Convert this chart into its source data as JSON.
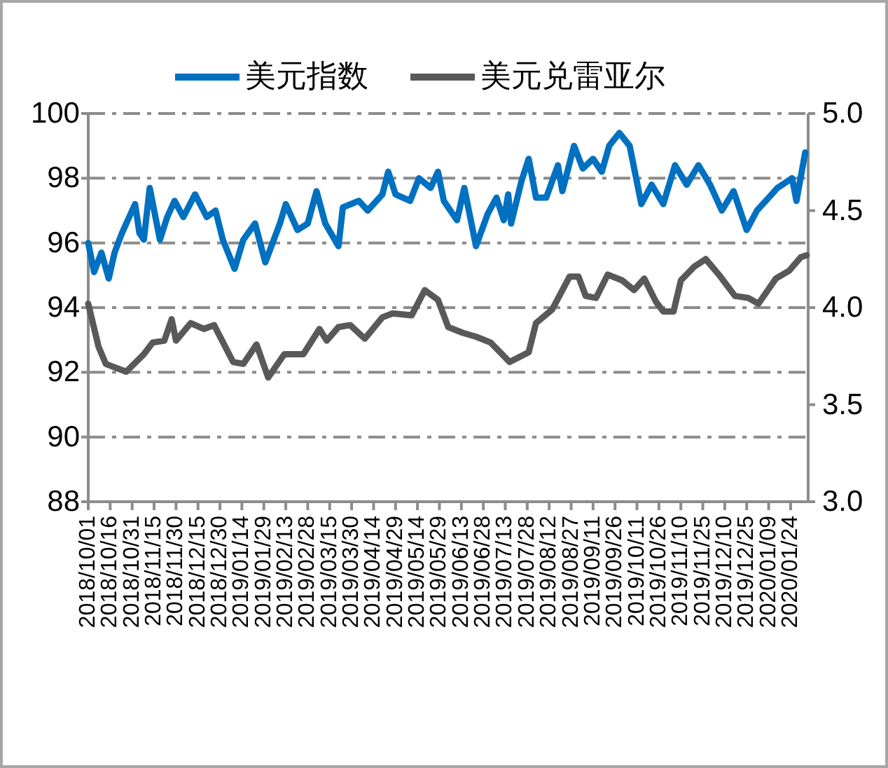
{
  "chart_data": {
    "type": "line",
    "legend": "top",
    "grid": "y",
    "line_style": "solid",
    "xlim": [
      "2018-10-01",
      "2020-02-05"
    ],
    "ylim": [
      88,
      100
    ],
    "yticks": [
      88,
      90,
      92,
      94,
      96,
      98,
      100
    ],
    "y2lim": [
      3,
      5
    ],
    "y2ticks": [
      {
        "value": 3,
        "label": "3.0"
      },
      {
        "value": 3.5,
        "label": "3.5"
      },
      {
        "value": 4,
        "label": "4.0"
      },
      {
        "value": 4.5,
        "label": "4.5"
      },
      {
        "value": 5,
        "label": "5.0"
      }
    ],
    "xticks": [
      {
        "value": "2018-10-01",
        "label": "2018/10/01"
      },
      {
        "value": "2018-10-16",
        "label": "2018/10/16"
      },
      {
        "value": "2018-10-31",
        "label": "2018/10/31"
      },
      {
        "value": "2018-11-15",
        "label": "2018/11/15"
      },
      {
        "value": "2018-11-30",
        "label": "2018/11/30"
      },
      {
        "value": "2018-12-15",
        "label": "2018/12/15"
      },
      {
        "value": "2018-12-30",
        "label": "2018/12/30"
      },
      {
        "value": "2019-01-14",
        "label": "2019/01/14"
      },
      {
        "value": "2019-01-29",
        "label": "2019/01/29"
      },
      {
        "value": "2019-02-13",
        "label": "2019/02/13"
      },
      {
        "value": "2019-02-28",
        "label": "2019/02/28"
      },
      {
        "value": "2019-03-15",
        "label": "2019/03/15"
      },
      {
        "value": "2019-03-30",
        "label": "2019/03/30"
      },
      {
        "value": "2019-04-14",
        "label": "2019/04/14"
      },
      {
        "value": "2019-04-29",
        "label": "2019/04/29"
      },
      {
        "value": "2019-05-14",
        "label": "2019/05/14"
      },
      {
        "value": "2019-05-29",
        "label": "2019/05/29"
      },
      {
        "value": "2019-06-13",
        "label": "2019/06/13"
      },
      {
        "value": "2019-06-28",
        "label": "2019/06/28"
      },
      {
        "value": "2019-07-13",
        "label": "2019/07/13"
      },
      {
        "value": "2019-07-28",
        "label": "2019/07/28"
      },
      {
        "value": "2019-08-12",
        "label": "2019/08/12"
      },
      {
        "value": "2019-08-27",
        "label": "2019/08/27"
      },
      {
        "value": "2019-09-11",
        "label": "2019/09/11"
      },
      {
        "value": "2019-09-26",
        "label": "2019/09/26"
      },
      {
        "value": "2019-10-11",
        "label": "2019/10/11"
      },
      {
        "value": "2019-10-26",
        "label": "2019/10/26"
      },
      {
        "value": "2019-11-10",
        "label": "2019/11/10"
      },
      {
        "value": "2019-11-25",
        "label": "2019/11/25"
      },
      {
        "value": "2019-12-10",
        "label": "2019/12/10"
      },
      {
        "value": "2019-12-25",
        "label": "2019/12/25"
      },
      {
        "value": "2020-01-09",
        "label": "2020/01/09"
      },
      {
        "value": "2020-01-24",
        "label": "2020/01/24"
      }
    ],
    "series": [
      {
        "name": "美元指数",
        "color": "#0070c0",
        "axis": "y",
        "x": [
          "2018-10-01",
          "2018-10-05",
          "2018-10-10",
          "2018-10-15",
          "2018-10-19",
          "2018-10-24",
          "2018-10-29",
          "2018-11-02",
          "2018-11-05",
          "2018-11-08",
          "2018-11-12",
          "2018-11-19",
          "2018-11-24",
          "2018-11-29",
          "2018-12-05",
          "2018-12-13",
          "2018-12-21",
          "2018-12-27",
          "2019-01-01",
          "2019-01-09",
          "2019-01-15",
          "2019-01-23",
          "2019-01-30",
          "2019-02-09",
          "2019-02-13",
          "2019-02-21",
          "2019-02-28",
          "2019-03-06",
          "2019-03-12",
          "2019-03-21",
          "2019-03-24",
          "2019-04-04",
          "2019-04-10",
          "2019-04-20",
          "2019-04-24",
          "2019-04-29",
          "2019-05-09",
          "2019-05-15",
          "2019-05-23",
          "2019-05-28",
          "2019-06-01",
          "2019-06-10",
          "2019-06-15",
          "2019-06-23",
          "2019-07-01",
          "2019-07-07",
          "2019-07-12",
          "2019-07-15",
          "2019-07-17",
          "2019-07-24",
          "2019-07-29",
          "2019-08-03",
          "2019-08-10",
          "2019-08-18",
          "2019-08-21",
          "2019-08-29",
          "2019-09-04",
          "2019-09-11",
          "2019-09-17",
          "2019-09-22",
          "2019-09-29",
          "2019-10-06",
          "2019-10-14",
          "2019-10-21",
          "2019-10-29",
          "2019-11-06",
          "2019-11-14",
          "2019-11-22",
          "2019-11-30",
          "2019-12-08",
          "2019-12-16",
          "2019-12-25",
          "2020-01-01",
          "2020-01-07",
          "2020-01-15",
          "2020-01-25",
          "2020-01-28",
          "2020-02-03"
        ],
        "values": [
          96.0,
          95.1,
          95.7,
          94.9,
          95.7,
          96.3,
          96.8,
          97.2,
          96.3,
          96.1,
          97.7,
          96.1,
          96.8,
          97.3,
          96.8,
          97.5,
          96.8,
          97.0,
          96.1,
          95.2,
          96.1,
          96.6,
          95.4,
          96.6,
          97.2,
          96.4,
          96.6,
          97.6,
          96.6,
          95.9,
          97.1,
          97.3,
          97.0,
          97.5,
          98.2,
          97.5,
          97.3,
          98.0,
          97.7,
          98.2,
          97.3,
          96.7,
          97.7,
          95.9,
          96.9,
          97.4,
          96.7,
          97.5,
          96.6,
          97.9,
          98.6,
          97.4,
          97.4,
          98.4,
          97.6,
          99.0,
          98.3,
          98.6,
          98.2,
          99.0,
          99.4,
          99.0,
          97.2,
          97.8,
          97.2,
          98.4,
          97.8,
          98.4,
          97.8,
          97.0,
          97.6,
          96.4,
          97.0,
          97.3,
          97.7,
          98.0,
          97.3,
          98.8
        ]
      },
      {
        "name": "美元兑雷亚尔",
        "color": "#595959",
        "axis": "y2",
        "x": [
          "2018-10-01",
          "2018-10-08",
          "2018-10-13",
          "2018-10-27",
          "2018-11-08",
          "2018-11-14",
          "2018-11-22",
          "2018-11-27",
          "2018-11-30",
          "2018-12-10",
          "2018-12-19",
          "2018-12-26",
          "2019-01-08",
          "2019-01-15",
          "2019-01-24",
          "2019-02-01",
          "2019-02-12",
          "2019-02-25",
          "2019-03-08",
          "2019-03-13",
          "2019-03-21",
          "2019-03-29",
          "2019-04-08",
          "2019-04-20",
          "2019-04-27",
          "2019-05-10",
          "2019-05-19",
          "2019-05-28",
          "2019-06-04",
          "2019-06-14",
          "2019-06-23",
          "2019-07-03",
          "2019-07-16",
          "2019-07-29",
          "2019-08-03",
          "2019-08-14",
          "2019-08-26",
          "2019-09-01",
          "2019-09-06",
          "2019-09-13",
          "2019-09-21",
          "2019-10-01",
          "2019-10-09",
          "2019-10-16",
          "2019-10-24",
          "2019-10-29",
          "2019-11-05",
          "2019-11-10",
          "2019-11-19",
          "2019-11-27",
          "2019-12-07",
          "2019-12-17",
          "2019-12-26",
          "2020-01-02",
          "2020-01-14",
          "2020-01-23",
          "2020-01-31",
          "2020-02-04"
        ],
        "values": [
          4.02,
          3.8,
          3.71,
          3.67,
          3.76,
          3.82,
          3.83,
          3.94,
          3.83,
          3.92,
          3.89,
          3.91,
          3.72,
          3.71,
          3.81,
          3.64,
          3.76,
          3.76,
          3.89,
          3.83,
          3.9,
          3.91,
          3.84,
          3.95,
          3.97,
          3.96,
          4.09,
          4.04,
          3.9,
          3.87,
          3.85,
          3.82,
          3.72,
          3.77,
          3.92,
          3.99,
          4.16,
          4.16,
          4.06,
          4.05,
          4.17,
          4.14,
          4.09,
          4.15,
          4.03,
          3.98,
          3.98,
          4.14,
          4.21,
          4.25,
          4.16,
          4.06,
          4.05,
          4.02,
          4.15,
          4.19,
          4.26,
          4.27
        ]
      }
    ]
  }
}
